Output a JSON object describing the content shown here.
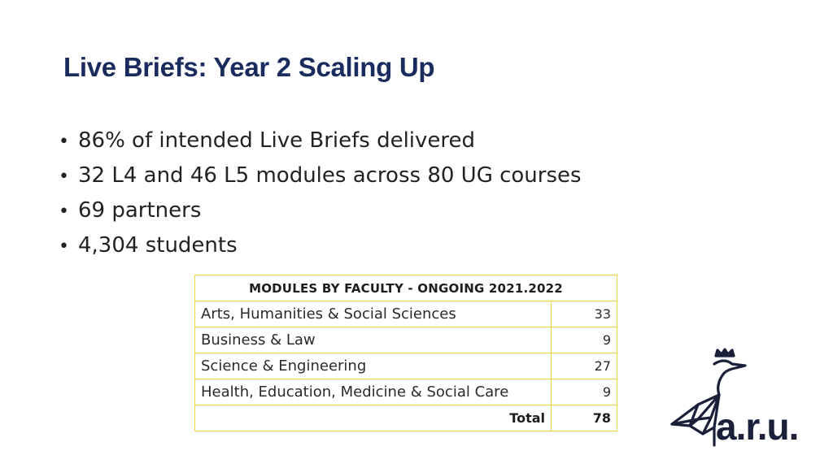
{
  "slide": {
    "title": "Live Briefs: Year 2 Scaling Up",
    "bullets": [
      "86% of intended Live Briefs delivered",
      "32 L4 and 46 L5 modules across 80 UG courses",
      "69 partners",
      "4,304 students"
    ],
    "bullet_glyph": "•"
  },
  "table": {
    "header": "MODULES BY FACULTY - ONGOING 2021.2022",
    "rows": [
      {
        "faculty": "Arts, Humanities & Social Sciences",
        "count": "33"
      },
      {
        "faculty": "Business & Law",
        "count": "9"
      },
      {
        "faculty": "Science & Engineering",
        "count": "27"
      },
      {
        "faculty": "Health, Education, Medicine & Social Care",
        "count": "9"
      }
    ],
    "total_label": "Total",
    "total_value": "78",
    "border_color": "#f2d34a"
  },
  "logo": {
    "text": "a.r.u.",
    "icon": "heron-crown-icon",
    "color": "#1a1f3a"
  },
  "colors": {
    "title": "#1a2b5e",
    "body_text": "#222222"
  }
}
